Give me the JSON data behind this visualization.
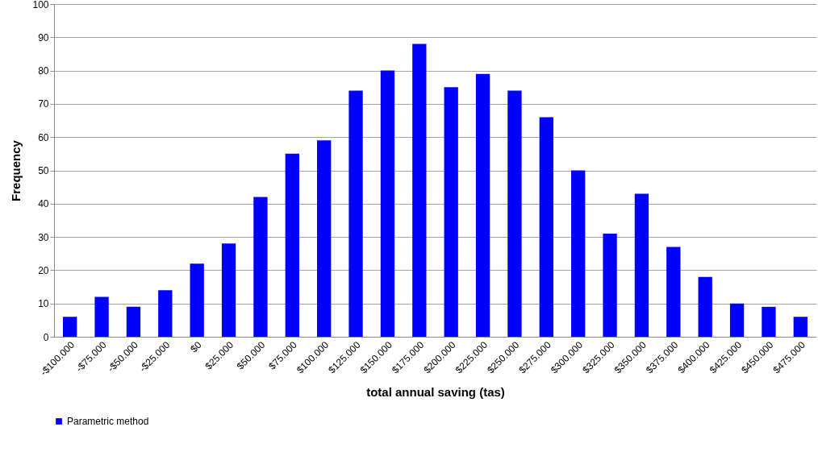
{
  "chart_data": {
    "type": "bar",
    "xlabel": "total annual saving (tas)",
    "ylabel": "Frequency",
    "categories": [
      "-$100.000",
      "-$75.000",
      "-$50.000",
      "-$25.000",
      "$0",
      "$25.000",
      "$50.000",
      "$75.000",
      "$100.000",
      "$125.000",
      "$150.000",
      "$175.000",
      "$200.000",
      "$225.000",
      "$250.000",
      "$275.000",
      "$300.000",
      "$325.000",
      "$350.000",
      "$375.000",
      "$400.000",
      "$425.000",
      "$450.000",
      "$475.000"
    ],
    "series": [
      {
        "name": "Parametric method",
        "color": "#0000ff",
        "values": [
          6,
          12,
          9,
          14,
          22,
          28,
          42,
          55,
          59,
          74,
          80,
          88,
          75,
          79,
          74,
          66,
          50,
          31,
          43,
          27,
          18,
          10,
          9,
          6
        ]
      }
    ],
    "ylim": [
      0,
      100
    ],
    "yticks": [
      0,
      10,
      20,
      30,
      40,
      50,
      60,
      70,
      80,
      90,
      100
    ],
    "grid": "y",
    "legend": "bottom"
  }
}
